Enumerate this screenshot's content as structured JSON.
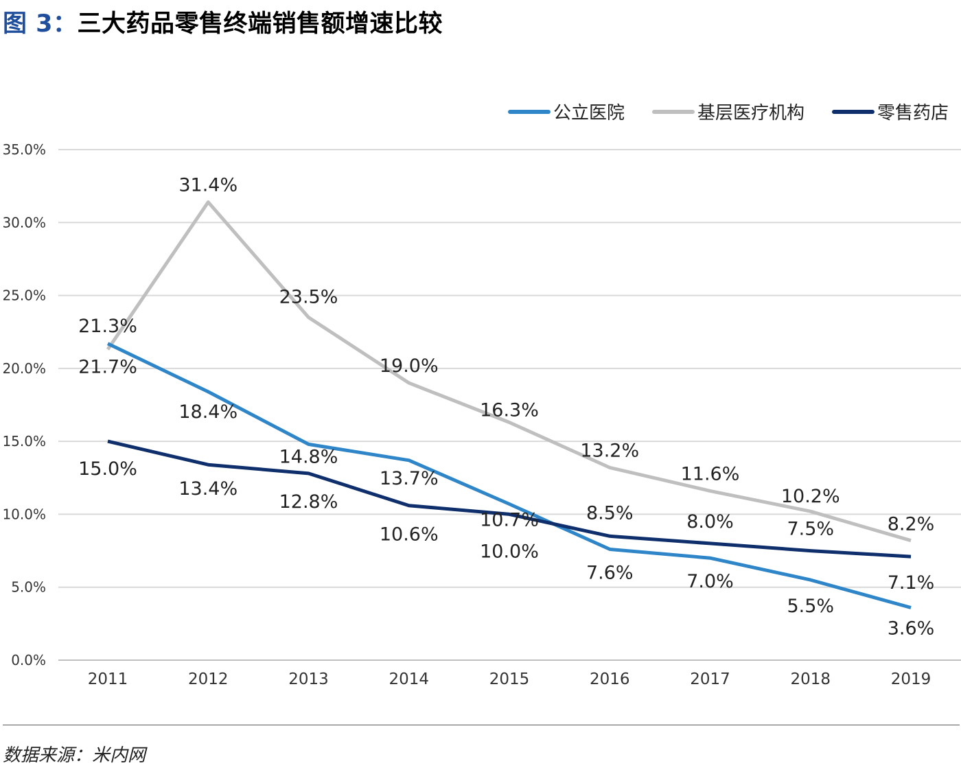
{
  "figure": {
    "number": "图 3：",
    "title": "三大药品零售终端销售额增速比较"
  },
  "source": "数据来源：米内网",
  "colors": {
    "public_hospital": "#2e86c8",
    "primary_care": "#bfbfbf",
    "retail_pharmacy": "#0e2f6b",
    "grid": "#d9d9d9",
    "axis_text": "#333333"
  },
  "chart_data": {
    "type": "line",
    "x": [
      "2011",
      "2012",
      "2013",
      "2014",
      "2015",
      "2016",
      "2017",
      "2018",
      "2019"
    ],
    "ylim": [
      0,
      35
    ],
    "yticks": [
      "0.0%",
      "5.0%",
      "10.0%",
      "15.0%",
      "20.0%",
      "25.0%",
      "30.0%",
      "35.0%"
    ],
    "grid": "horizontal",
    "legend_position": "top-right",
    "series": [
      {
        "name": "公立医院",
        "values": [
          21.7,
          18.4,
          14.8,
          13.7,
          10.7,
          7.6,
          7.0,
          5.5,
          3.6
        ],
        "labels": [
          "21.7%",
          "18.4%",
          "14.8%",
          "13.7%",
          "10.7%",
          "7.6%",
          "7.0%",
          "5.5%",
          "3.6%"
        ],
        "color": "#2e86c8"
      },
      {
        "name": "基层医疗机构",
        "values": [
          21.3,
          31.4,
          23.5,
          19.0,
          16.3,
          13.2,
          11.6,
          10.2,
          8.2
        ],
        "labels": [
          "21.3%",
          "31.4%",
          "23.5%",
          "19.0%",
          "16.3%",
          "13.2%",
          "11.6%",
          "10.2%",
          "8.2%"
        ],
        "color": "#bfbfbf"
      },
      {
        "name": "零售药店",
        "values": [
          15.0,
          13.4,
          12.8,
          10.6,
          10.0,
          8.5,
          8.0,
          7.5,
          7.1
        ],
        "labels": [
          "15.0%",
          "13.4%",
          "12.8%",
          "10.6%",
          "10.0%",
          "8.5%",
          "8.0%",
          "7.5%",
          "7.1%"
        ],
        "color": "#0e2f6b"
      }
    ]
  }
}
